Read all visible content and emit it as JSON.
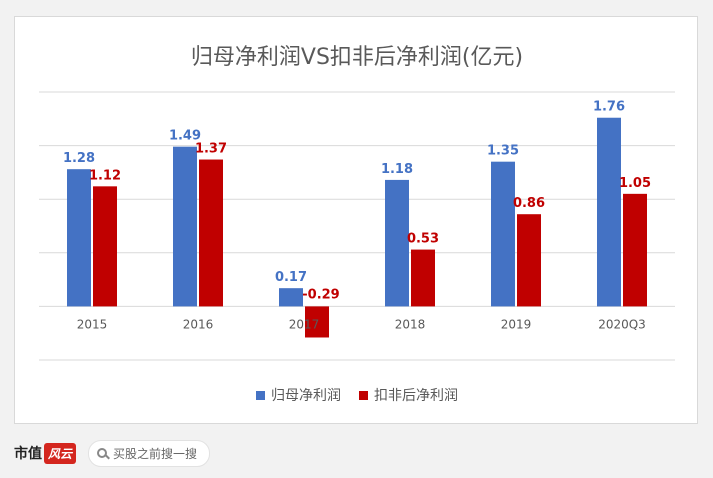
{
  "chart_data": {
    "type": "bar",
    "title": "归母净利润VS扣非后净利润(亿元)",
    "categories": [
      "2015",
      "2016",
      "2017",
      "2018",
      "2019",
      "2020Q3"
    ],
    "series": [
      {
        "name": "归母净利润",
        "color": "#4472c4",
        "label_color": "#4472c4",
        "values": [
          1.28,
          1.49,
          0.17,
          1.18,
          1.35,
          1.76
        ]
      },
      {
        "name": "扣非后净利润",
        "color": "#c00000",
        "label_color": "#c00000",
        "values": [
          1.12,
          1.37,
          -0.29,
          0.53,
          0.86,
          1.05
        ]
      }
    ],
    "ylim": [
      -0.5,
      2.0
    ],
    "grid": true,
    "legend_position": "bottom"
  },
  "footer": {
    "brand_text": "市值",
    "brand_mark": "风云",
    "search_placeholder": "买股之前搜一搜",
    "search_icon": "search-icon"
  }
}
